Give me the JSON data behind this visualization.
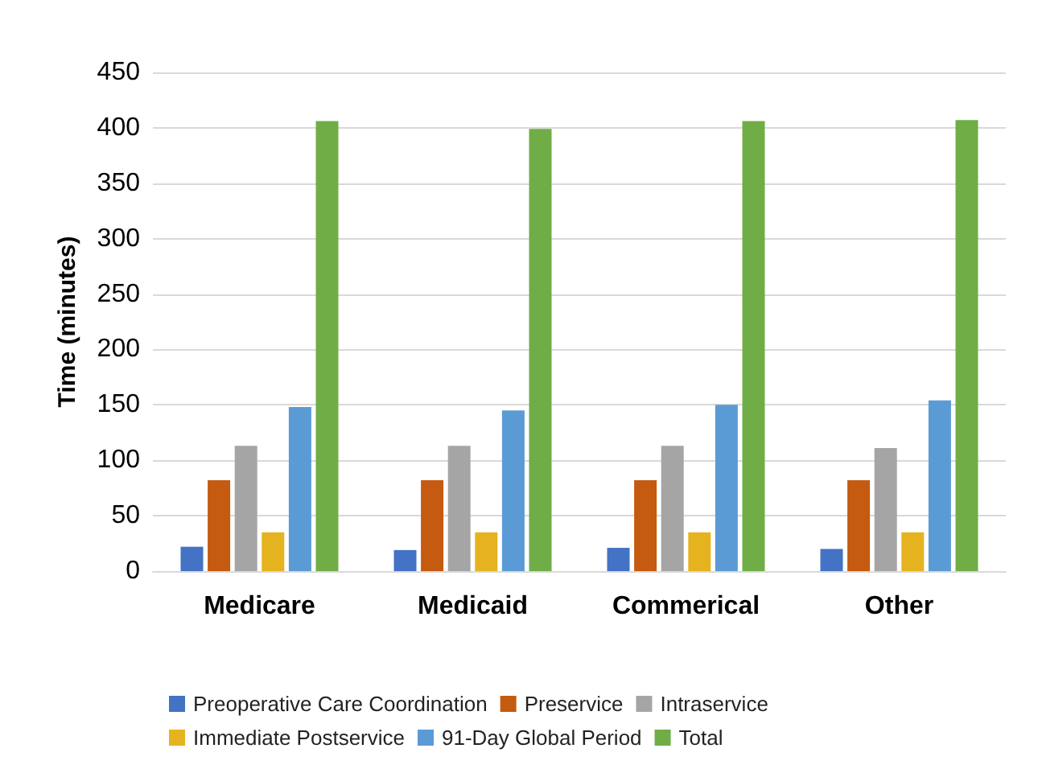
{
  "chart_data": {
    "type": "bar",
    "ylabel": "Time (minutes)",
    "categories": [
      "Medicare",
      "Medicaid",
      "Commerical",
      "Other"
    ],
    "series": [
      {
        "name": "Preoperative Care Coordination",
        "color": "#4472c4",
        "values": [
          22,
          19,
          21,
          20
        ]
      },
      {
        "name": "Preservice",
        "color": "#c55a11",
        "values": [
          82,
          82,
          82,
          82
        ]
      },
      {
        "name": "Intraservice",
        "color": "#a5a5a5",
        "values": [
          113,
          113,
          113,
          111
        ]
      },
      {
        "name": "Immediate Postservice",
        "color": "#e5b31f",
        "values": [
          35,
          35,
          35,
          35
        ]
      },
      {
        "name": "91-Day Global Period",
        "color": "#5b9bd5",
        "values": [
          148,
          145,
          150,
          154
        ]
      },
      {
        "name": "Total",
        "color": "#70ad47",
        "values": [
          406,
          399,
          406,
          407
        ]
      }
    ],
    "ylim": [
      0,
      450
    ],
    "yticks": [
      0,
      50,
      100,
      150,
      200,
      250,
      300,
      350,
      400,
      450
    ],
    "grid": "y",
    "legend": "bottom"
  }
}
